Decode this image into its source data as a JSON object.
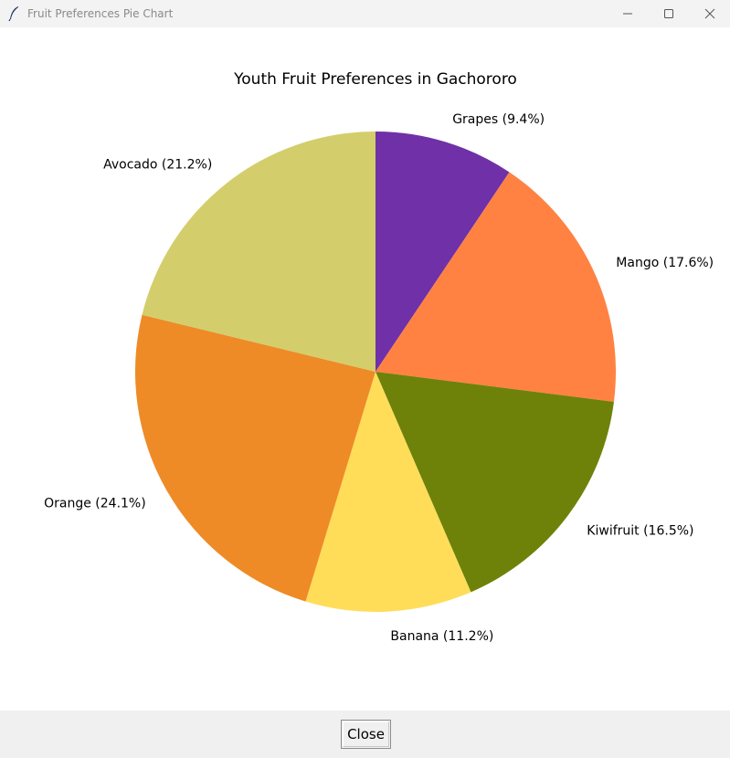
{
  "window": {
    "title": "Fruit Preferences Pie Chart",
    "app_icon": "feather-icon"
  },
  "controls": {
    "minimize_icon": "minimize-icon",
    "maximize_icon": "maximize-icon",
    "close_icon": "close-icon"
  },
  "footer": {
    "close_label": "Close"
  },
  "chart_data": {
    "type": "pie",
    "title": "Youth Fruit Preferences in Gachororo",
    "start_angle_deg": 90,
    "direction": "clockwise",
    "slices": [
      {
        "label": "Grapes (9.4%)",
        "category": "Grapes",
        "value": 9.4,
        "color": "#7030a8"
      },
      {
        "label": "Mango (17.6%)",
        "category": "Mango",
        "value": 17.6,
        "color": "#ff8243"
      },
      {
        "label": "Kiwifruit (16.5%)",
        "category": "Kiwifruit",
        "value": 16.5,
        "color": "#6e8209"
      },
      {
        "label": "Banana (11.2%)",
        "category": "Banana",
        "value": 11.2,
        "color": "#ffdd59"
      },
      {
        "label": "Orange (24.1%)",
        "category": "Orange",
        "value": 24.1,
        "color": "#ee8b27"
      },
      {
        "label": "Avocado (21.2%)",
        "category": "Avocado",
        "value": 21.2,
        "color": "#d3ce6b"
      }
    ]
  }
}
